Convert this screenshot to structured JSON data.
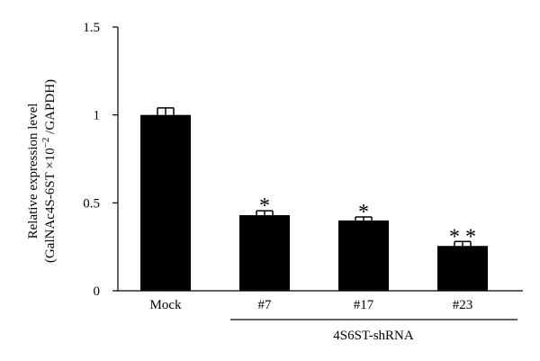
{
  "chart_data": {
    "type": "bar",
    "categories": [
      "Mock",
      "#7",
      "#17",
      "#23"
    ],
    "values": [
      1.0,
      0.43,
      0.4,
      0.255
    ],
    "errors": [
      0.04,
      0.025,
      0.02,
      0.025
    ],
    "significance": [
      "",
      "*",
      "*",
      "**"
    ],
    "ylabel_line1": "Relative expression level",
    "ylabel_line2": "(GalNAc4S-6ST ×10",
    "ylabel_sup": "−2",
    "ylabel_line2_end": " /GAPDH)",
    "ylim": [
      0,
      1.5
    ],
    "yticks": [
      0,
      0.5,
      1,
      1.5
    ],
    "ytick_labels": [
      "0",
      "0.5",
      "1",
      "1.5"
    ],
    "group_label": "4S6ST-shRNA",
    "group_categories": [
      "#7",
      "#17",
      "#23"
    ],
    "bar_color": "#000000",
    "grid": false
  }
}
